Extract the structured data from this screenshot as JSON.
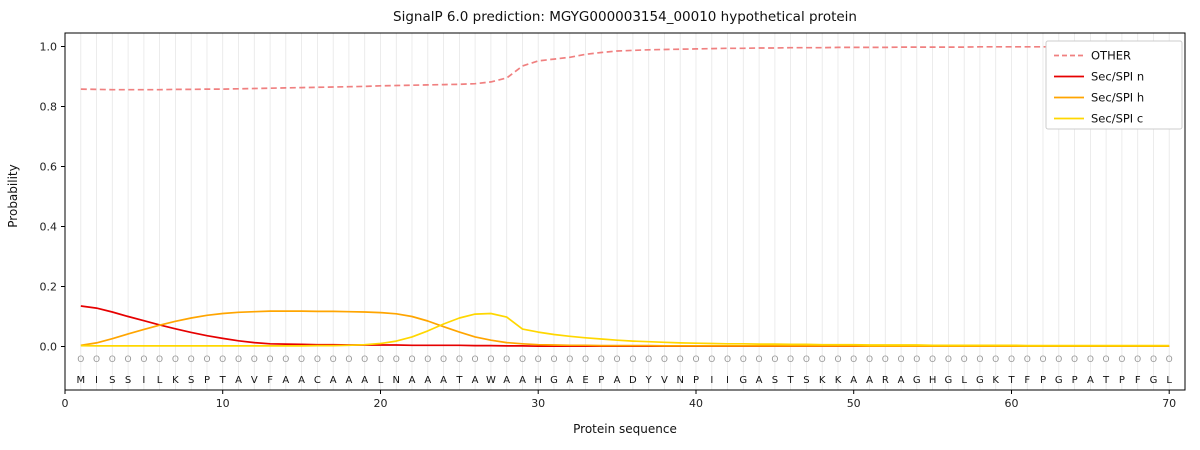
{
  "chart_data": {
    "type": "line",
    "title": "SignalP 6.0 prediction: MGYG000003154_00010 hypothetical protein",
    "xlabel": "Protein sequence",
    "ylabel": "Probability",
    "xlim": [
      0,
      71
    ],
    "ylim": [
      0.0,
      1.0
    ],
    "x_ticks": [
      0,
      10,
      20,
      30,
      40,
      50,
      60,
      70
    ],
    "y_ticks": [
      0.0,
      0.2,
      0.4,
      0.6,
      0.8,
      1.0
    ],
    "grid": "vertical-per-residue",
    "grid_color": "#e7e7e7",
    "legend_position": "top-right",
    "sequence": "MISSILKSPTAVFAACAAALNAAATAWAAHGAEPADYVNPIIGASTSKKAARAGHGLGKTFPGPATPFGL",
    "position_marks": "OOOOOOOOOOOOOOOOOOOOOOOOOOOOOOOOOOOOOOOOOOOOOOOOOOOOOOOOOOOOOOOOOOOOOO",
    "series": [
      {
        "name": "OTHER",
        "color": "#f08080",
        "dashed": true,
        "values": [
          0.858,
          0.857,
          0.856,
          0.856,
          0.856,
          0.856,
          0.857,
          0.857,
          0.858,
          0.858,
          0.859,
          0.86,
          0.861,
          0.862,
          0.863,
          0.864,
          0.865,
          0.866,
          0.867,
          0.869,
          0.87,
          0.871,
          0.872,
          0.873,
          0.874,
          0.876,
          0.882,
          0.895,
          0.935,
          0.952,
          0.958,
          0.964,
          0.974,
          0.98,
          0.985,
          0.987,
          0.989,
          0.99,
          0.991,
          0.992,
          0.993,
          0.994,
          0.994,
          0.995,
          0.995,
          0.996,
          0.996,
          0.996,
          0.997,
          0.997,
          0.997,
          0.997,
          0.998,
          0.998,
          0.998,
          0.998,
          0.998,
          0.999,
          0.999,
          0.999,
          0.999,
          0.999,
          0.999,
          1.0,
          1.0,
          1.0,
          1.0,
          1.0,
          1.0,
          1.0
        ]
      },
      {
        "name": "Sec/SPI n",
        "color": "#e60000",
        "dashed": false,
        "values": [
          0.135,
          0.128,
          0.115,
          0.1,
          0.086,
          0.072,
          0.059,
          0.047,
          0.036,
          0.027,
          0.019,
          0.013,
          0.009,
          0.008,
          0.007,
          0.006,
          0.006,
          0.005,
          0.005,
          0.005,
          0.005,
          0.004,
          0.004,
          0.004,
          0.004,
          0.003,
          0.003,
          0.002,
          0.002,
          0.001,
          0.001,
          0.001,
          0.001,
          0.001,
          0.001,
          0.001,
          0.001,
          0.001,
          0.001,
          0.001,
          0.001,
          0.001,
          0.001,
          0.001,
          0.001,
          0.001,
          0.001,
          0.001,
          0.001,
          0.001,
          0.001,
          0.001,
          0.001,
          0.001,
          0.001,
          0.001,
          0.001,
          0.001,
          0.001,
          0.001,
          0.001,
          0.001,
          0.001,
          0.001,
          0.001,
          0.001,
          0.001,
          0.001,
          0.001,
          0.001
        ]
      },
      {
        "name": "Sec/SPI h",
        "color": "#ffa500",
        "dashed": false,
        "values": [
          0.004,
          0.012,
          0.026,
          0.042,
          0.057,
          0.071,
          0.084,
          0.095,
          0.104,
          0.11,
          0.114,
          0.116,
          0.118,
          0.118,
          0.118,
          0.117,
          0.117,
          0.116,
          0.115,
          0.113,
          0.109,
          0.1,
          0.085,
          0.066,
          0.048,
          0.032,
          0.021,
          0.013,
          0.009,
          0.006,
          0.005,
          0.004,
          0.004,
          0.003,
          0.003,
          0.003,
          0.003,
          0.002,
          0.002,
          0.002,
          0.002,
          0.002,
          0.002,
          0.002,
          0.002,
          0.002,
          0.002,
          0.002,
          0.002,
          0.002,
          0.001,
          0.001,
          0.001,
          0.001,
          0.001,
          0.001,
          0.001,
          0.001,
          0.001,
          0.001,
          0.001,
          0.001,
          0.001,
          0.001,
          0.001,
          0.001,
          0.001,
          0.001,
          0.001,
          0.001
        ]
      },
      {
        "name": "Sec/SPI c",
        "color": "#ffd700",
        "dashed": false,
        "values": [
          0.003,
          0.002,
          0.002,
          0.002,
          0.002,
          0.002,
          0.002,
          0.002,
          0.002,
          0.002,
          0.002,
          0.002,
          0.002,
          0.002,
          0.002,
          0.003,
          0.003,
          0.004,
          0.006,
          0.01,
          0.018,
          0.032,
          0.052,
          0.075,
          0.095,
          0.108,
          0.11,
          0.098,
          0.058,
          0.048,
          0.04,
          0.034,
          0.029,
          0.025,
          0.021,
          0.018,
          0.016,
          0.014,
          0.012,
          0.011,
          0.01,
          0.009,
          0.009,
          0.008,
          0.008,
          0.007,
          0.007,
          0.006,
          0.006,
          0.006,
          0.005,
          0.005,
          0.005,
          0.005,
          0.004,
          0.004,
          0.004,
          0.004,
          0.004,
          0.004,
          0.003,
          0.003,
          0.003,
          0.003,
          0.003,
          0.003,
          0.003,
          0.003,
          0.003,
          0.003
        ]
      }
    ]
  }
}
